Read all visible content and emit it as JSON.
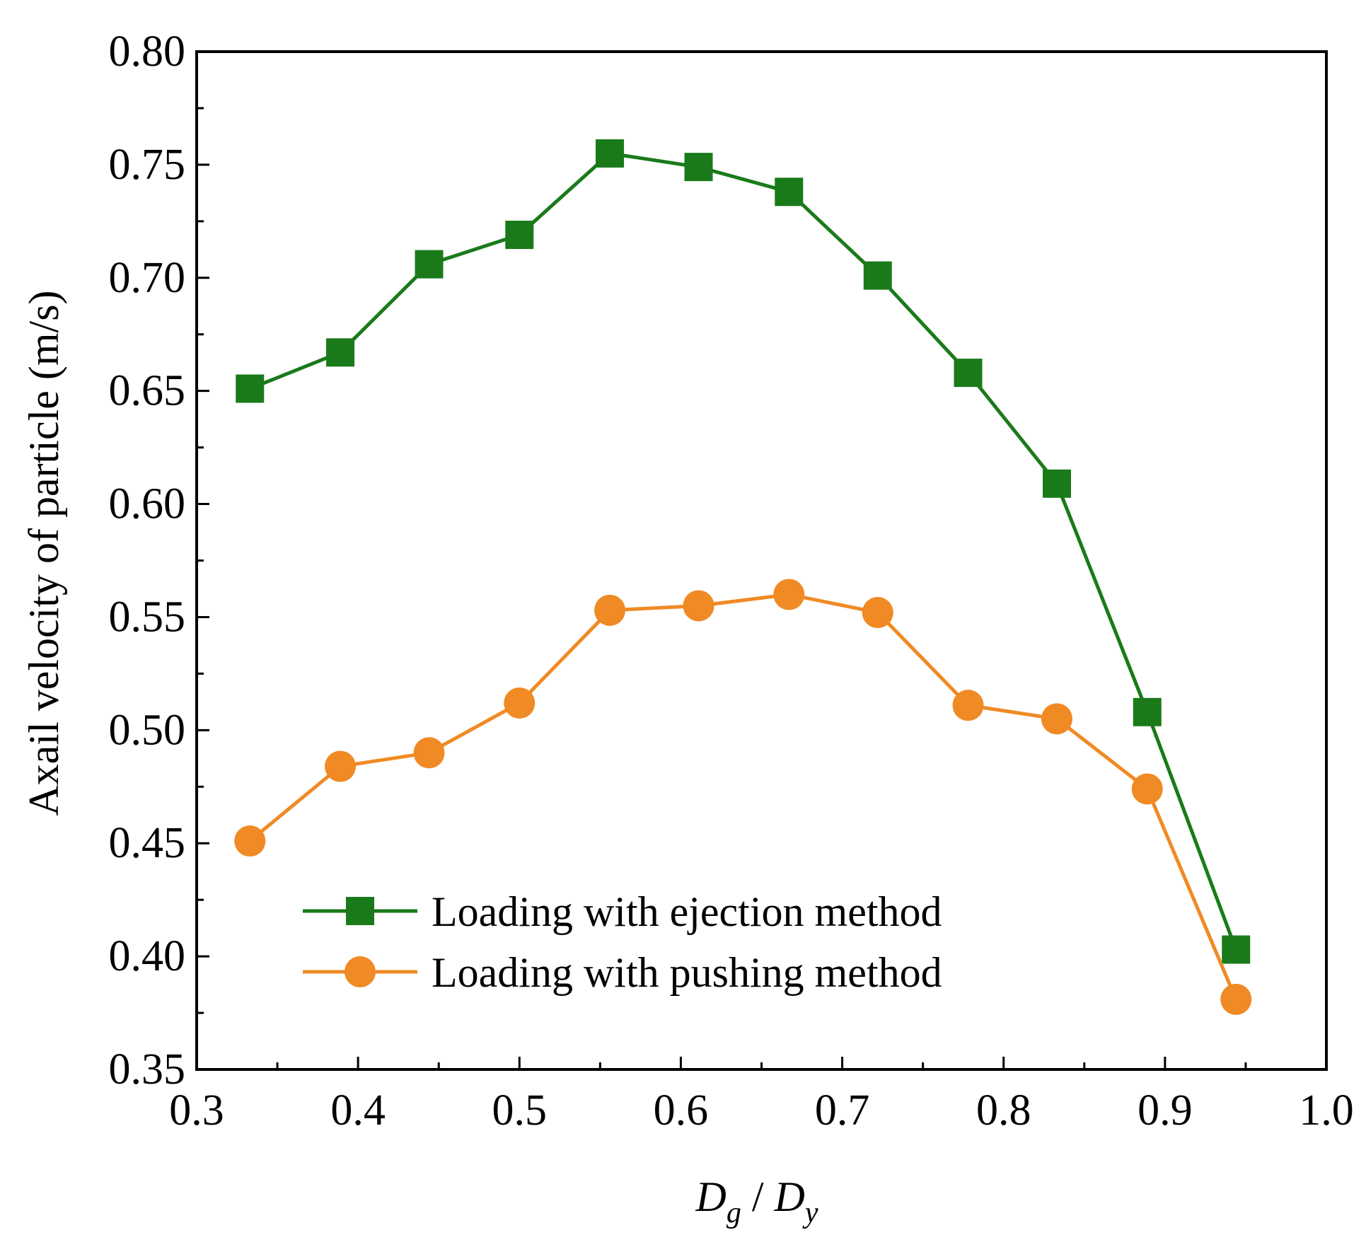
{
  "chart_data": {
    "type": "line",
    "title": "",
    "xlabel": "D_g / D_y",
    "xlabel_parts": {
      "main1": "D",
      "sub1": "g",
      "sep": " / ",
      "main2": "D",
      "sub2": "y"
    },
    "ylabel": "Axail velocity of particle (m/s)",
    "xlim": [
      0.3,
      1.0
    ],
    "ylim": [
      0.35,
      0.8
    ],
    "xticks": [
      0.3,
      0.4,
      0.5,
      0.6,
      0.7,
      0.8,
      0.9,
      1.0
    ],
    "xtick_labels": [
      "0.3",
      "0.4",
      "0.5",
      "0.6",
      "0.7",
      "0.8",
      "0.9",
      "1.0"
    ],
    "yticks": [
      0.35,
      0.4,
      0.45,
      0.5,
      0.55,
      0.6,
      0.65,
      0.7,
      0.75,
      0.8
    ],
    "ytick_labels": [
      "0.35",
      "0.40",
      "0.45",
      "0.50",
      "0.55",
      "0.60",
      "0.65",
      "0.70",
      "0.75",
      "0.80"
    ],
    "grid": false,
    "legend_position": "bottom-left",
    "x": [
      0.333,
      0.389,
      0.444,
      0.5,
      0.556,
      0.611,
      0.667,
      0.722,
      0.778,
      0.833,
      0.889,
      0.944
    ],
    "series": [
      {
        "name": "Loading with ejection method",
        "marker": "square",
        "color": "#1a7a1a",
        "values": [
          0.651,
          0.667,
          0.706,
          0.719,
          0.755,
          0.749,
          0.738,
          0.701,
          0.658,
          0.609,
          0.508,
          0.403
        ]
      },
      {
        "name": "Loading with pushing method",
        "marker": "circle",
        "color": "#f08a24",
        "values": [
          0.451,
          0.484,
          0.49,
          0.512,
          0.553,
          0.555,
          0.56,
          0.552,
          0.511,
          0.505,
          0.474,
          0.381
        ]
      }
    ]
  }
}
